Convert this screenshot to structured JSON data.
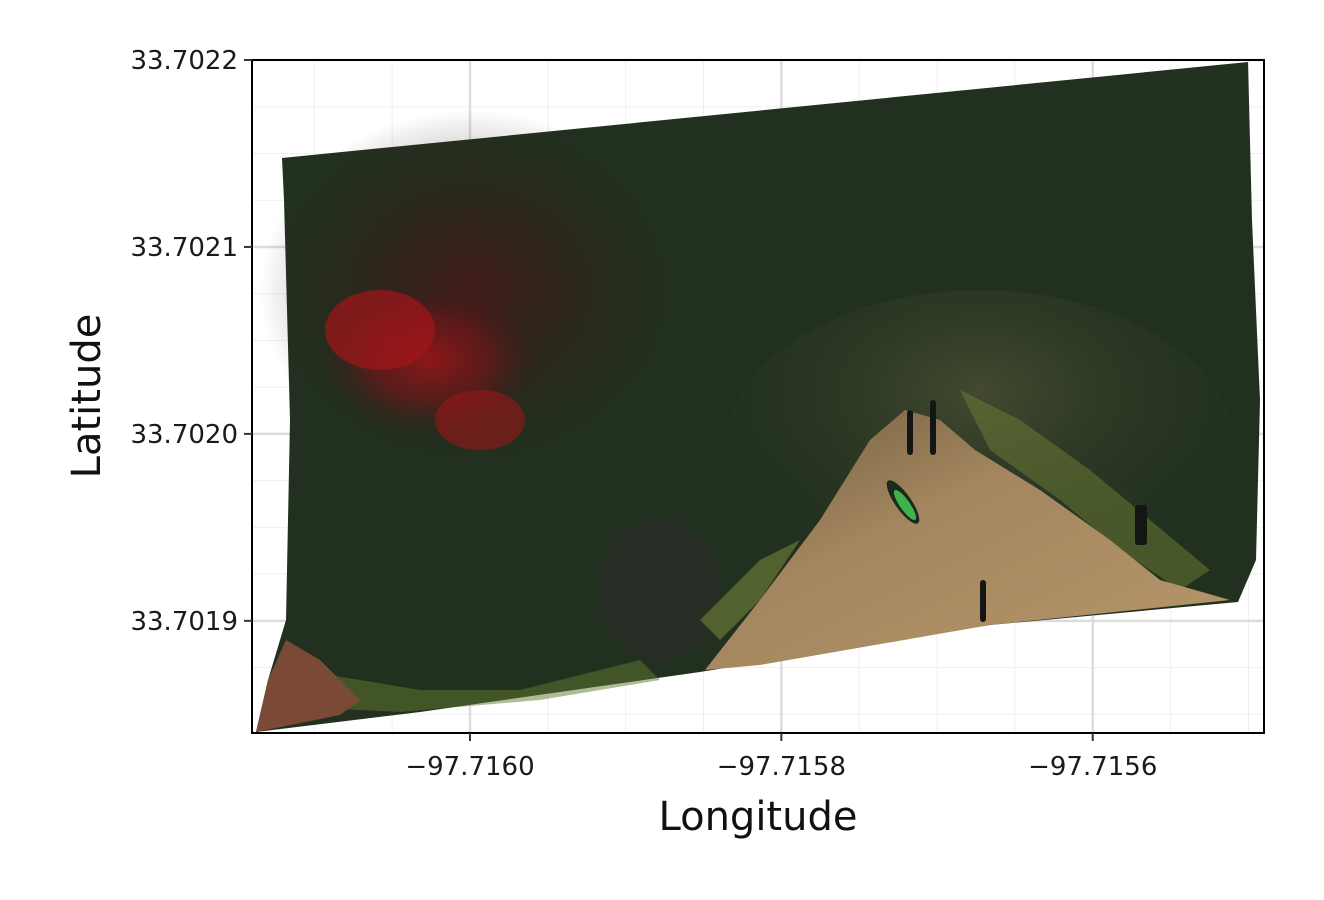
{
  "plot": {
    "xlabel": "Longitude",
    "ylabel": "Latitude",
    "x_ticks": [
      {
        "value": -97.716,
        "label": "−97.7160"
      },
      {
        "value": -97.7158,
        "label": "−97.7158"
      },
      {
        "value": -97.7156,
        "label": "−97.7156"
      }
    ],
    "y_ticks": [
      {
        "value": 33.7022,
        "label": "33.7022"
      },
      {
        "value": 33.7021,
        "label": "33.7021"
      },
      {
        "value": 33.702,
        "label": "33.7020"
      },
      {
        "value": 33.7019,
        "label": "33.7019"
      }
    ],
    "xlim": [
      -97.71614,
      -97.71549
    ],
    "ylim": [
      33.70184,
      33.7022
    ],
    "grid": true
  },
  "map": {
    "content": "aerial orthomosaic image",
    "colors": {
      "water": "#1f3020",
      "red_plume": "#a01417",
      "shore_sand": "#9a7d58",
      "vegetation": "#7d8a3a",
      "grid_major": "#dcdcdc",
      "grid_minor": "#efefef"
    }
  }
}
